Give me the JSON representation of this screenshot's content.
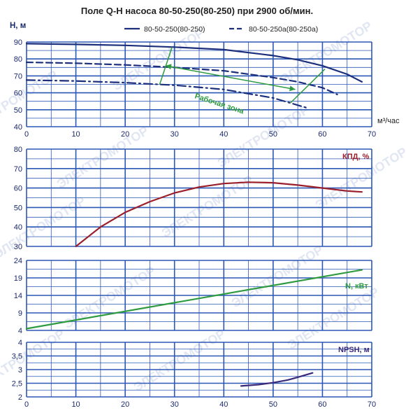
{
  "title": "Поле Q-H насоса 80-50-250(80-250) при 2900 об/мин.",
  "colors": {
    "grid": "#2b57b5",
    "blue_curve": "#1b2f7c",
    "green": "#2e9b3f",
    "red_curve": "#9b1f2a",
    "purple_curve": "#3a2a7a",
    "axis_text": "#1b2a6b",
    "watermark": "#c9d2ea"
  },
  "watermark_text": "ЭЛЕКТРОМОТОР",
  "chart_data": [
    {
      "id": "qh",
      "type": "line",
      "ylabel": "Н, м",
      "xlabel": "м³/час",
      "xlim": [
        0,
        70
      ],
      "ylim": [
        40,
        90
      ],
      "y_ticks": [
        40,
        50,
        60,
        70,
        80,
        90
      ],
      "x_ticks": [
        0,
        10,
        20,
        30,
        40,
        50,
        60,
        70
      ],
      "grid": true,
      "legend_position": "top-right",
      "series": [
        {
          "name": "80-50-250(80-250)",
          "style": "solid",
          "x": [
            0,
            10,
            20,
            30,
            40,
            50,
            55,
            60,
            65,
            68
          ],
          "y": [
            89,
            88.6,
            88,
            87,
            85.5,
            82,
            79.5,
            76,
            71,
            66.5
          ]
        },
        {
          "name": "80-50-250а(80-250а)",
          "style": "dashed",
          "x": [
            0,
            10,
            20,
            30,
            40,
            50,
            55,
            60,
            63
          ],
          "y": [
            78,
            77.5,
            76.5,
            75,
            73,
            69,
            66.5,
            63,
            59
          ]
        },
        {
          "name": "",
          "style": "dashdot",
          "x": [
            0,
            10,
            20,
            30,
            40,
            50,
            57
          ],
          "y": [
            67.5,
            67,
            66,
            64.5,
            62,
            57,
            51
          ]
        }
      ],
      "work_zone": {
        "label": "Рабочая зона",
        "left_boundary": [
          [
            27,
            65
          ],
          [
            29.5,
            87
          ]
        ],
        "right_boundary": [
          [
            53.5,
            54
          ],
          [
            60.5,
            74
          ]
        ],
        "arrow": [
          [
            28.2,
            76
          ],
          [
            54.5,
            62
          ]
        ]
      }
    },
    {
      "id": "kpd",
      "type": "line",
      "ylabel": "КПД, %",
      "xlim": [
        0,
        70
      ],
      "ylim": [
        30,
        80
      ],
      "y_ticks": [
        30,
        40,
        50,
        60,
        70,
        80
      ],
      "grid": true,
      "series": [
        {
          "name": "КПД, %",
          "x": [
            10,
            15,
            20,
            25,
            30,
            35,
            40,
            45,
            50,
            55,
            60,
            65,
            68
          ],
          "y": [
            30,
            40,
            47.5,
            53,
            57.5,
            60.5,
            62.3,
            63,
            62.7,
            61.5,
            60,
            58.5,
            58
          ]
        }
      ]
    },
    {
      "id": "power",
      "type": "line",
      "ylabel": "N, кВт",
      "xlim": [
        0,
        70
      ],
      "ylim": [
        4,
        24
      ],
      "y_ticks": [
        4,
        9,
        14,
        19,
        24
      ],
      "grid": true,
      "series": [
        {
          "name": "N, кВт",
          "x": [
            0,
            68
          ],
          "y": [
            4.5,
            21.3
          ]
        }
      ]
    },
    {
      "id": "npsh",
      "type": "line",
      "ylabel": "NPSH, м",
      "xlim": [
        0,
        70
      ],
      "ylim": [
        2,
        4
      ],
      "y_ticks": [
        2,
        2.5,
        3,
        3.5,
        4
      ],
      "x_ticks": [
        0,
        10,
        20,
        30,
        40,
        50,
        60,
        70
      ],
      "grid": true,
      "series": [
        {
          "name": "NPSH, м",
          "x": [
            43.5,
            47,
            50,
            53,
            55,
            58
          ],
          "y": [
            2.4,
            2.45,
            2.52,
            2.62,
            2.72,
            2.88
          ]
        }
      ]
    }
  ]
}
